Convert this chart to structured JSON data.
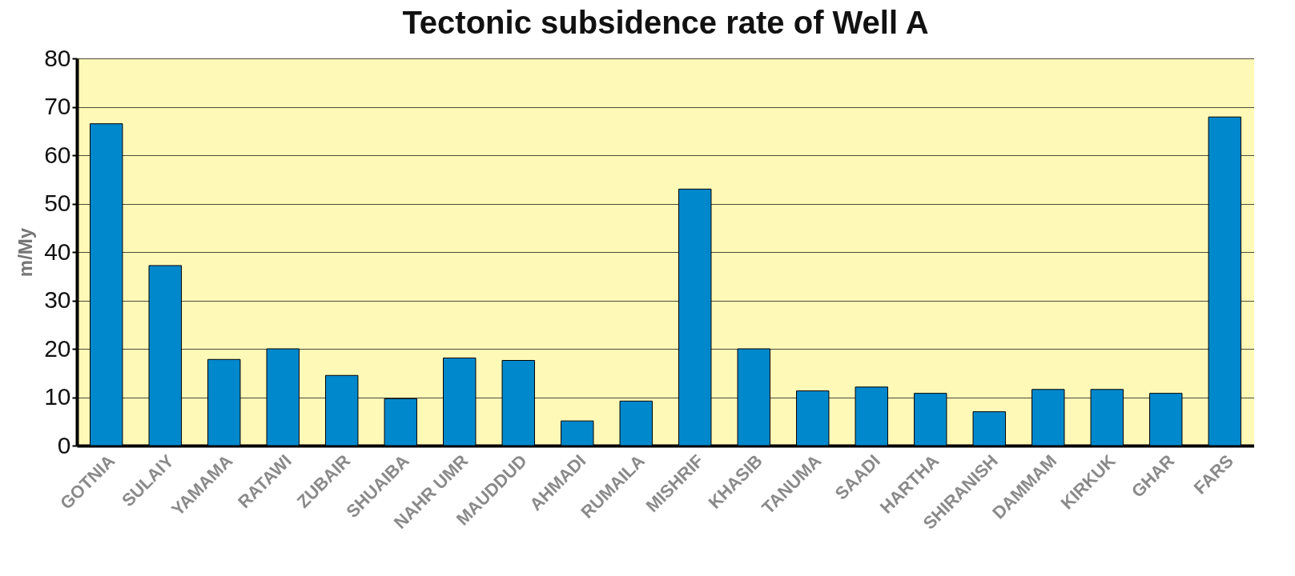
{
  "chart_data": {
    "type": "bar",
    "title": "Tectonic subsidence rate of Well A",
    "ylabel": "m/My",
    "categories": [
      "GOTNIA",
      "SULAIY",
      "YAMAMA",
      "RATAWI",
      "ZUBAIR",
      "SHUAIBA",
      "NAHR UMR",
      "MAUDDUD",
      "AHMADI",
      "RUMAILA",
      "MISHRIF",
      "KHASIB",
      "TANUMA",
      "SAADI",
      "HARTHA",
      "SHIRANISH",
      "DAMMAM",
      "KIRKUK",
      "GHAR",
      "FARS"
    ],
    "values": [
      66.5,
      37.2,
      17.8,
      20,
      14.5,
      9.7,
      18.1,
      17.6,
      5.1,
      9.2,
      53,
      20,
      11.3,
      12.1,
      10.8,
      7,
      11.6,
      11.6,
      10.8,
      67.9
    ],
    "color": "#0088cc",
    "ylim": [
      0,
      80
    ],
    "yticks": [
      0,
      10,
      20,
      30,
      40,
      50,
      60,
      70,
      80
    ],
    "grid": "y"
  }
}
